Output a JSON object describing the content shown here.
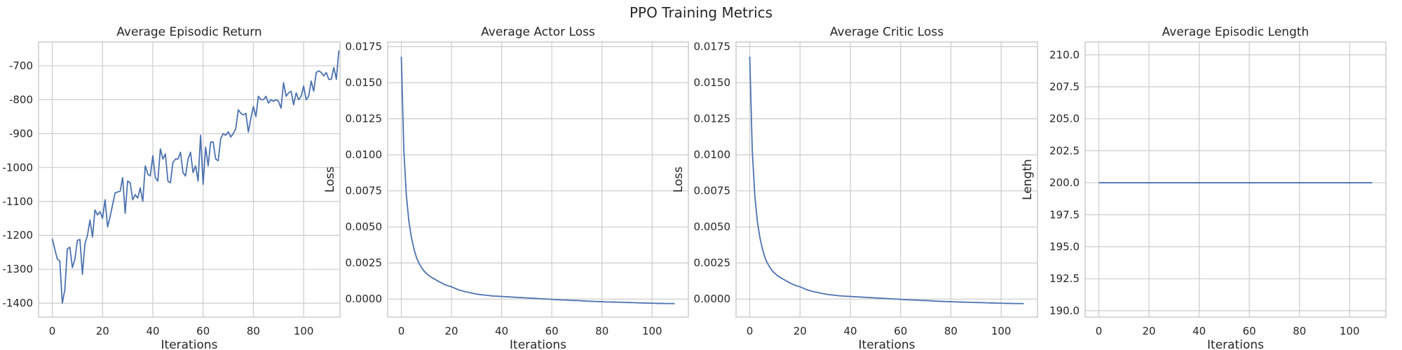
{
  "title": "PPO Training Metrics",
  "colors": {
    "line": "#4c72b0",
    "grid": "#cccccc",
    "axes_edge": "#cccccc",
    "background": "#ffffff"
  },
  "chart_data": [
    {
      "type": "line",
      "title": "Average Episodic Return",
      "xlabel": "Iterations",
      "ylabel": "",
      "xlim": [
        -5.45,
        114.45
      ],
      "ylim": [
        -1441,
        -630
      ],
      "xticks": [
        0,
        20,
        40,
        60,
        80,
        100
      ],
      "yticks": [
        -1400,
        -1300,
        -1200,
        -1100,
        -1000,
        -900,
        -800,
        -700
      ],
      "grid": true,
      "series": [
        {
          "values": [
            -1210,
            -1240,
            -1270,
            -1275,
            -1400,
            -1360,
            -1240,
            -1235,
            -1295,
            -1270,
            -1215,
            -1212,
            -1315,
            -1225,
            -1200,
            -1155,
            -1205,
            -1125,
            -1140,
            -1130,
            -1150,
            -1095,
            -1175,
            -1145,
            -1110,
            -1075,
            -1072,
            -1070,
            -1030,
            -1135,
            -1040,
            -1045,
            -1095,
            -1080,
            -1090,
            -1060,
            -1100,
            -995,
            -1020,
            -1025,
            -965,
            -1030,
            -1040,
            -945,
            -975,
            -960,
            -1040,
            -1045,
            -985,
            -975,
            -975,
            -955,
            -1015,
            -1025,
            -975,
            -955,
            -1015,
            -995,
            -1040,
            -905,
            -1050,
            -940,
            -995,
            -925,
            -925,
            -975,
            -980,
            -915,
            -900,
            -905,
            -895,
            -910,
            -900,
            -885,
            -830,
            -840,
            -845,
            -840,
            -895,
            -855,
            -820,
            -850,
            -790,
            -800,
            -800,
            -790,
            -810,
            -800,
            -805,
            -800,
            -805,
            -825,
            -750,
            -790,
            -780,
            -775,
            -815,
            -780,
            -800,
            -790,
            -760,
            -800,
            -790,
            -745,
            -775,
            -720,
            -715,
            -720,
            -730,
            -720,
            -740,
            -740,
            -705,
            -740,
            -655
          ]
        }
      ]
    },
    {
      "type": "line",
      "title": "Average Actor Loss",
      "xlabel": "Iterations",
      "ylabel": "Loss",
      "xlim": [
        -5.45,
        114.45
      ],
      "ylim": [
        -0.00125,
        0.01782
      ],
      "xticks": [
        0,
        20,
        40,
        60,
        80,
        100
      ],
      "yticks": [
        0,
        0.0025,
        0.005,
        0.0075,
        0.01,
        0.0125,
        0.015,
        0.0175
      ],
      "ytick_labels": [
        "0.0000",
        "0.0025",
        "0.0050",
        "0.0075",
        "0.0100",
        "0.0125",
        "0.0150",
        "0.0175"
      ],
      "grid": true,
      "series": [
        {
          "values": [
            0.0168,
            0.0103,
            0.0072,
            0.0054,
            0.0043,
            0.0035,
            0.0029,
            0.0025,
            0.0022,
            0.00195,
            0.00178,
            0.00163,
            0.00151,
            0.00141,
            0.00131,
            0.00121,
            0.00112,
            0.00103,
            0.00096,
            0.0009,
            0.00085,
            0.00078,
            0.0007,
            0.00063,
            0.00058,
            0.00053,
            0.00049,
            0.00046,
            0.00042,
            0.00038,
            0.00035,
            0.00032,
            0.0003,
            0.00028,
            0.00026,
            0.00024,
            0.00022,
            0.00021,
            0.0002,
            0.00019,
            0.00018,
            0.00017,
            0.00016,
            0.00015,
            0.00014,
            0.00013,
            0.00012,
            0.00011,
            0.0001,
            9e-05,
            8e-05,
            7e-05,
            6e-05,
            5e-05,
            4e-05,
            3e-05,
            2e-05,
            1e-05,
            0.0,
            -1e-05,
            -2e-05,
            -3e-05,
            -4e-05,
            -5e-05,
            -6e-05,
            -6e-05,
            -7e-05,
            -8e-05,
            -9e-05,
            -0.0001,
            -0.0001,
            -0.00011,
            -0.00012,
            -0.00013,
            -0.00014,
            -0.00015,
            -0.00016,
            -0.00016,
            -0.00017,
            -0.00018,
            -0.00018,
            -0.00019,
            -0.0002,
            -0.0002,
            -0.00021,
            -0.00021,
            -0.00022,
            -0.00022,
            -0.00023,
            -0.00023,
            -0.00024,
            -0.00024,
            -0.00025,
            -0.00025,
            -0.00026,
            -0.00026,
            -0.00027,
            -0.00027,
            -0.00028,
            -0.00028,
            -0.00029,
            -0.00029,
            -0.0003,
            -0.0003,
            -0.0003,
            -0.00031,
            -0.00031,
            -0.00031,
            -0.00031,
            -0.00032
          ]
        }
      ]
    },
    {
      "type": "line",
      "title": "Average Critic Loss",
      "xlabel": "Iterations",
      "ylabel": "Loss",
      "xlim": [
        -5.45,
        114.45
      ],
      "ylim": [
        -0.00125,
        0.01782
      ],
      "xticks": [
        0,
        20,
        40,
        60,
        80,
        100
      ],
      "yticks": [
        0,
        0.0025,
        0.005,
        0.0075,
        0.01,
        0.0125,
        0.015,
        0.0175
      ],
      "ytick_labels": [
        "0.0000",
        "0.0025",
        "0.0050",
        "0.0075",
        "0.0100",
        "0.0125",
        "0.0150",
        "0.0175"
      ],
      "grid": true,
      "series": [
        {
          "values": [
            0.0168,
            0.0103,
            0.0072,
            0.0054,
            0.0043,
            0.0035,
            0.0029,
            0.0025,
            0.0022,
            0.00195,
            0.00178,
            0.00163,
            0.00151,
            0.00141,
            0.00131,
            0.00121,
            0.00112,
            0.00103,
            0.00096,
            0.0009,
            0.00085,
            0.00078,
            0.0007,
            0.00063,
            0.00058,
            0.00053,
            0.00049,
            0.00046,
            0.00042,
            0.00038,
            0.00035,
            0.00032,
            0.0003,
            0.00028,
            0.00026,
            0.00024,
            0.00022,
            0.00021,
            0.0002,
            0.00019,
            0.00018,
            0.00017,
            0.00016,
            0.00015,
            0.00014,
            0.00013,
            0.00012,
            0.00011,
            0.0001,
            9e-05,
            8e-05,
            7e-05,
            6e-05,
            5e-05,
            4e-05,
            3e-05,
            2e-05,
            1e-05,
            0.0,
            -1e-05,
            -2e-05,
            -3e-05,
            -4e-05,
            -5e-05,
            -6e-05,
            -6e-05,
            -7e-05,
            -8e-05,
            -9e-05,
            -0.0001,
            -0.0001,
            -0.00011,
            -0.00012,
            -0.00013,
            -0.00014,
            -0.00015,
            -0.00016,
            -0.00016,
            -0.00017,
            -0.00018,
            -0.00018,
            -0.00019,
            -0.0002,
            -0.0002,
            -0.00021,
            -0.00021,
            -0.00022,
            -0.00022,
            -0.00023,
            -0.00023,
            -0.00024,
            -0.00024,
            -0.00025,
            -0.00025,
            -0.00026,
            -0.00026,
            -0.00027,
            -0.00027,
            -0.00028,
            -0.00028,
            -0.00029,
            -0.00029,
            -0.0003,
            -0.0003,
            -0.0003,
            -0.00031,
            -0.00031,
            -0.00031,
            -0.00031,
            -0.00032
          ]
        }
      ]
    },
    {
      "type": "line",
      "title": "Average Episodic Length",
      "xlabel": "Iterations",
      "ylabel": "Length",
      "xlim": [
        -5.45,
        114.45
      ],
      "ylim": [
        189.5,
        211.0
      ],
      "xticks": [
        0,
        20,
        40,
        60,
        80,
        100
      ],
      "yticks": [
        190.0,
        192.5,
        195.0,
        197.5,
        200.0,
        202.5,
        205.0,
        207.5,
        210.0
      ],
      "ytick_labels": [
        "190.0",
        "192.5",
        "195.0",
        "197.5",
        "200.0",
        "202.5",
        "205.0",
        "207.5",
        "210.0"
      ],
      "grid": true,
      "series": [
        {
          "values": [
            200,
            200,
            200,
            200,
            200,
            200,
            200,
            200,
            200,
            200,
            200,
            200,
            200,
            200,
            200,
            200,
            200,
            200,
            200,
            200,
            200,
            200,
            200,
            200,
            200,
            200,
            200,
            200,
            200,
            200,
            200,
            200,
            200,
            200,
            200,
            200,
            200,
            200,
            200,
            200,
            200,
            200,
            200,
            200,
            200,
            200,
            200,
            200,
            200,
            200,
            200,
            200,
            200,
            200,
            200,
            200,
            200,
            200,
            200,
            200,
            200,
            200,
            200,
            200,
            200,
            200,
            200,
            200,
            200,
            200,
            200,
            200,
            200,
            200,
            200,
            200,
            200,
            200,
            200,
            200,
            200,
            200,
            200,
            200,
            200,
            200,
            200,
            200,
            200,
            200,
            200,
            200,
            200,
            200,
            200,
            200,
            200,
            200,
            200,
            200,
            200,
            200,
            200,
            200,
            200,
            200,
            200,
            200,
            200,
            200
          ]
        }
      ]
    }
  ]
}
